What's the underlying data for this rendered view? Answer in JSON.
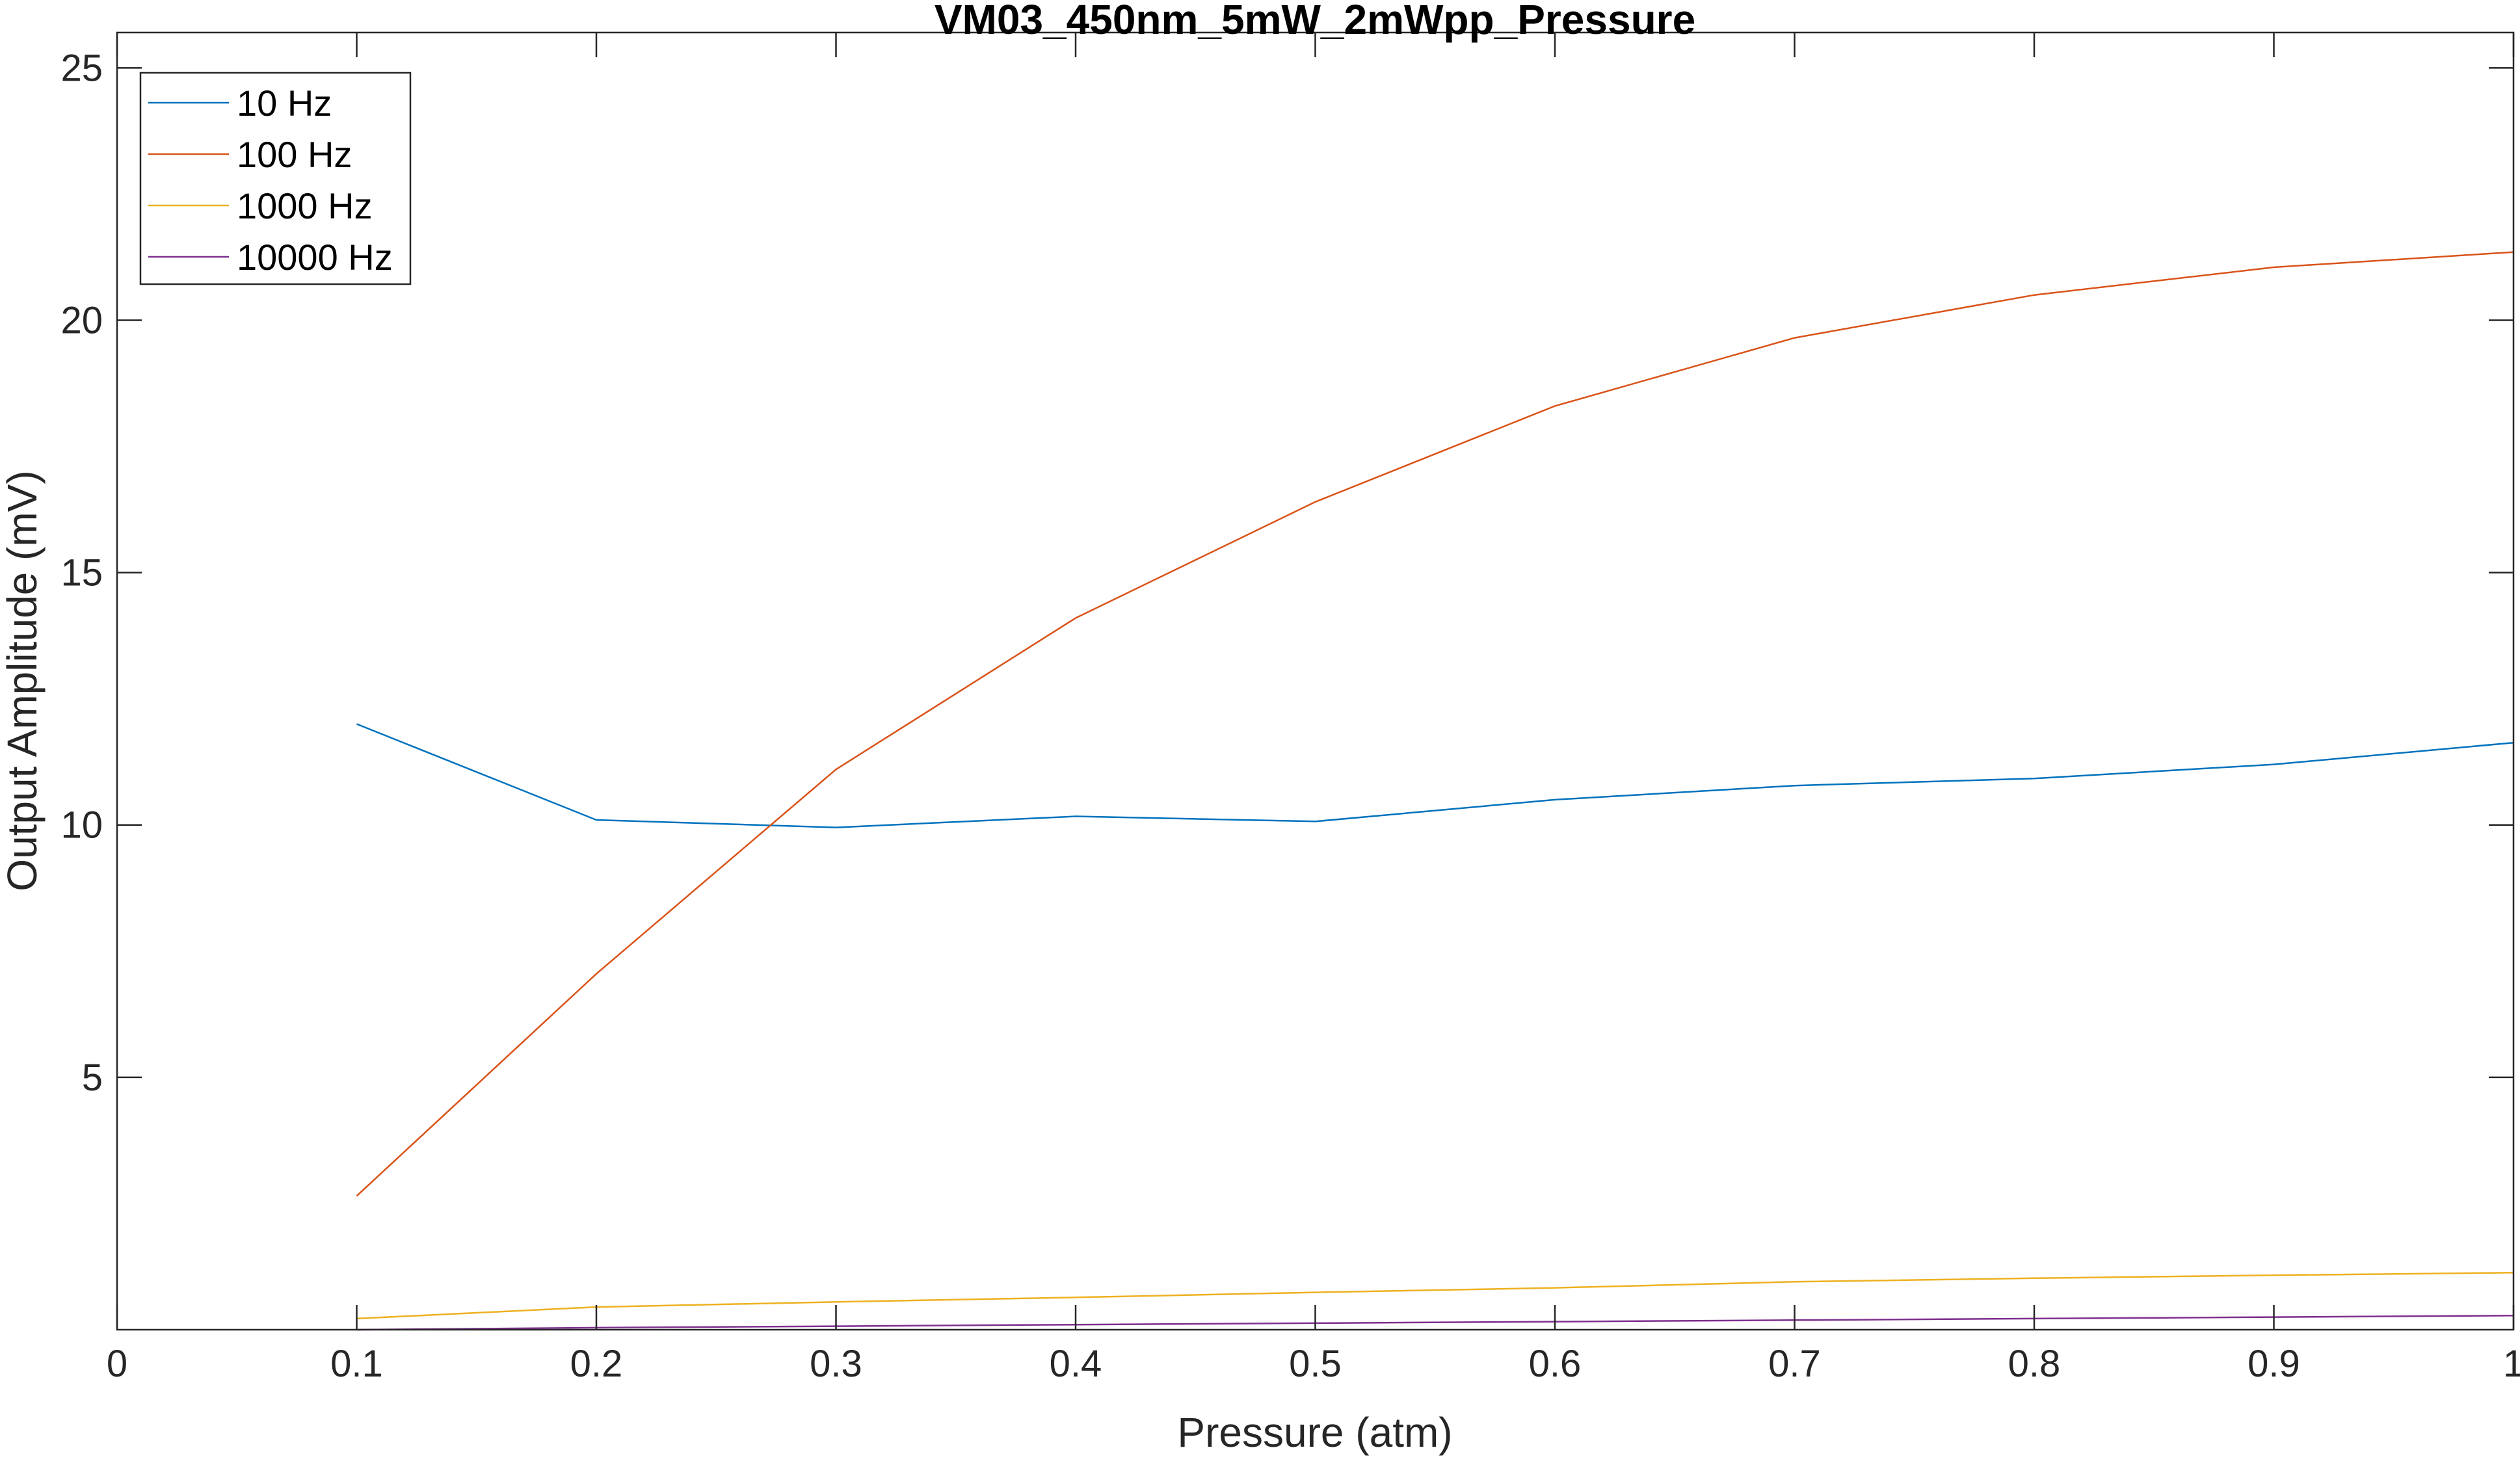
{
  "chart_data": {
    "type": "line",
    "title": "VM03_450nm_5mW_2mWpp_Pressure",
    "xlabel": "Pressure (atm)",
    "ylabel": "Output Amplitude (mV)",
    "xlim": [
      0,
      1
    ],
    "ylim": [
      0,
      25.7
    ],
    "x_ticks": [
      0,
      0.1,
      0.2,
      0.3,
      0.4,
      0.5,
      0.6,
      0.7,
      0.8,
      0.9,
      1
    ],
    "x_tick_labels": [
      "0",
      "0.1",
      "0.2",
      "0.3",
      "0.4",
      "0.5",
      "0.6",
      "0.7",
      "0.8",
      "0.9",
      "1"
    ],
    "y_ticks": [
      5,
      10,
      15,
      20,
      25
    ],
    "y_tick_labels": [
      "5",
      "10",
      "15",
      "20",
      "25"
    ],
    "grid": false,
    "legend_position": "top-left",
    "x": [
      0.1,
      0.2,
      0.3,
      0.4,
      0.5,
      0.6,
      0.7,
      0.8,
      0.9,
      1.0
    ],
    "series": [
      {
        "name": "10 Hz",
        "color": "#0072BD",
        "values": [
          12.0,
          10.1,
          9.95,
          10.17,
          10.07,
          10.5,
          10.78,
          10.92,
          11.2,
          11.63
        ]
      },
      {
        "name": "100 Hz",
        "color": "#D95319",
        "values": [
          2.65,
          7.05,
          11.1,
          14.1,
          16.4,
          18.3,
          19.65,
          20.5,
          21.05,
          21.35
        ]
      },
      {
        "name": "1000 Hz",
        "color": "#EDB120",
        "values": [
          0.22,
          0.45,
          0.55,
          0.64,
          0.74,
          0.83,
          0.95,
          1.02,
          1.08,
          1.13
        ]
      },
      {
        "name": "10000 Hz",
        "color": "#7E2F8E",
        "values": [
          0.0,
          0.04,
          0.07,
          0.1,
          0.13,
          0.16,
          0.19,
          0.22,
          0.25,
          0.28
        ]
      }
    ]
  }
}
